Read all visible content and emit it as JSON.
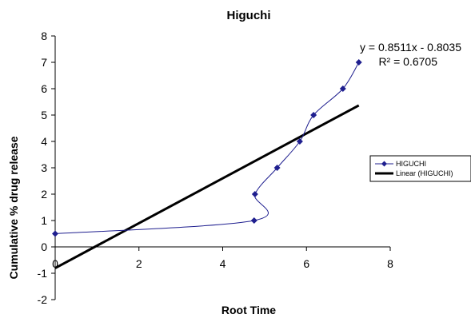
{
  "chart_data": {
    "type": "scatter",
    "title": "Higuchi",
    "xlabel": "Root Time",
    "ylabel": "Cumulative %  drug release",
    "xlim": [
      0,
      8
    ],
    "ylim": [
      -2,
      8
    ],
    "xticks": [
      0,
      2,
      4,
      6,
      8
    ],
    "yticks": [
      -2,
      -1,
      0,
      1,
      2,
      3,
      4,
      5,
      6,
      7,
      8
    ],
    "grid": false,
    "legend_position": "right",
    "series": [
      {
        "name": "HIGUCHI",
        "color": "#1f1f8f",
        "marker": "diamond",
        "line": "smoothed",
        "x": [
          0,
          4.75,
          4.77,
          5.3,
          5.84,
          6.17,
          6.87,
          7.25
        ],
        "y": [
          0.5,
          1,
          2,
          3,
          4,
          5,
          6,
          7
        ]
      },
      {
        "name": "Linear (HIGUCHI)",
        "color": "#000000",
        "type": "trendline",
        "slope": 0.8511,
        "intercept": -0.8035,
        "x_range": [
          0,
          7.25
        ]
      }
    ],
    "annotations": {
      "equation": "y = 0.8511x - 0.8035",
      "r_squared": "R² = 0.6705"
    }
  }
}
